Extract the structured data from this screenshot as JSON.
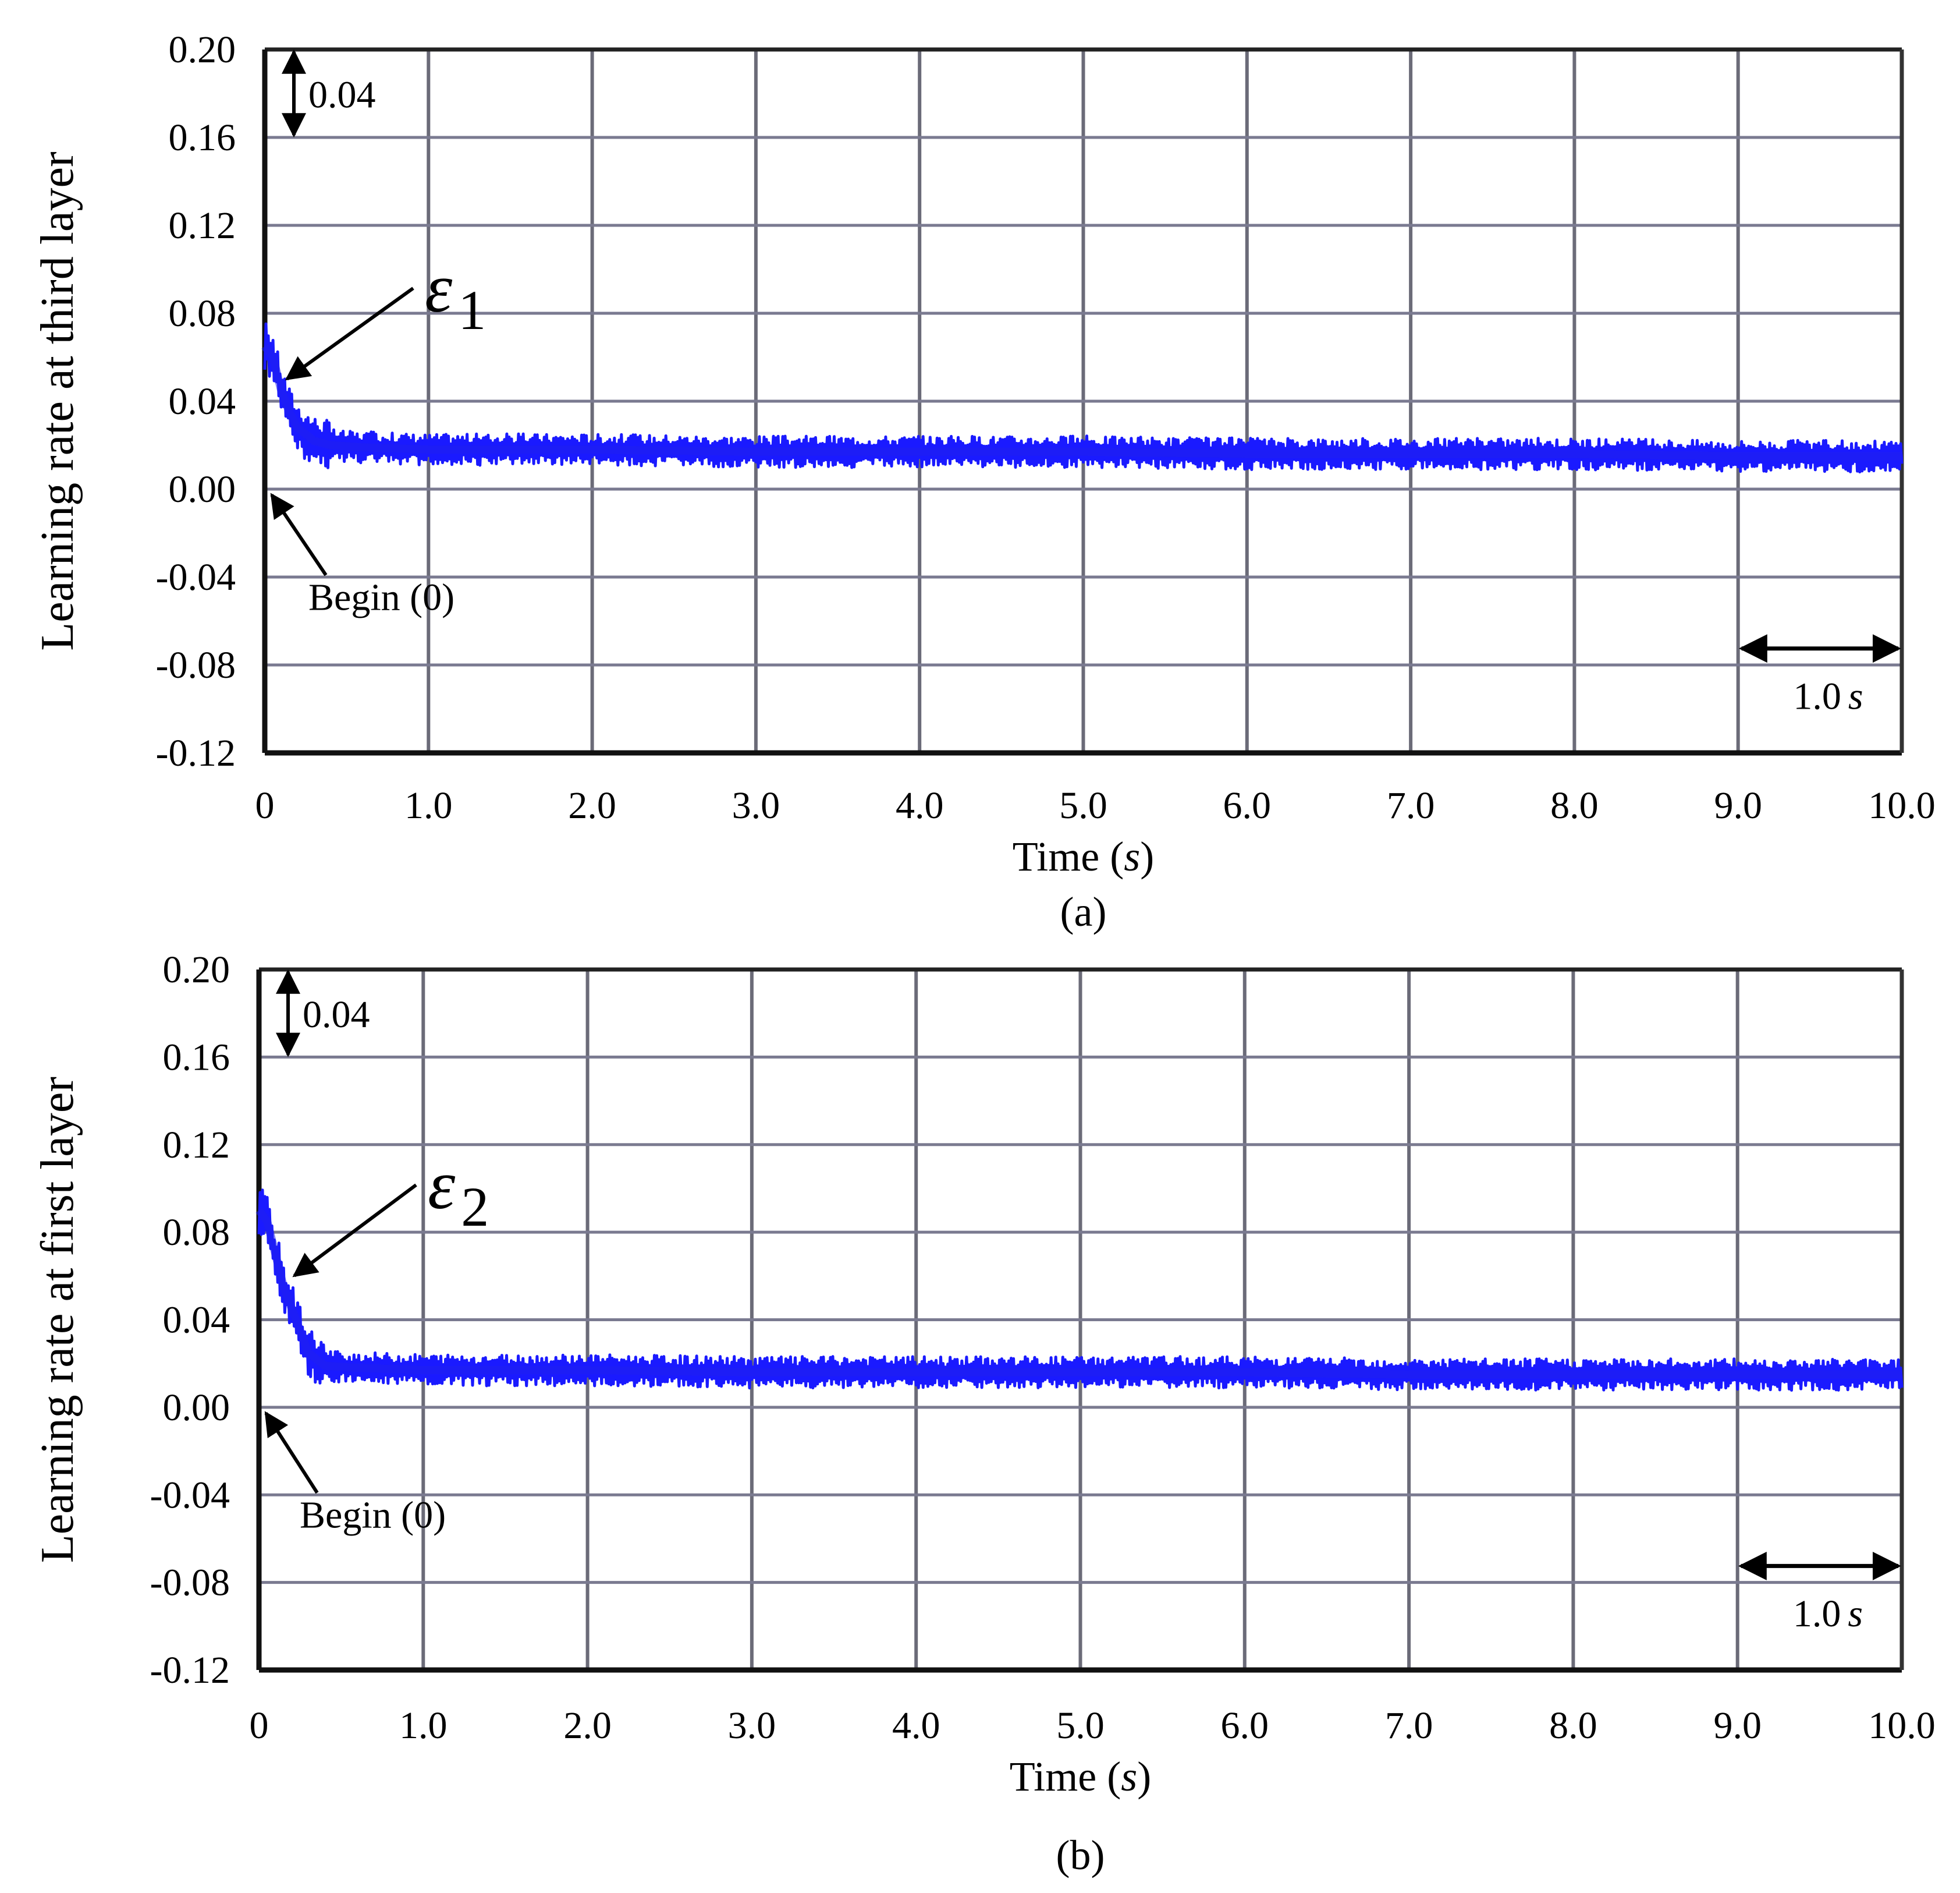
{
  "chart_data": [
    {
      "type": "line",
      "panel": "(a)",
      "caption": "(a)",
      "xlabel_main": "Time",
      "xlabel_unit": "s",
      "ylabel": "Learning rate at third layer",
      "xlim": [
        0,
        10
      ],
      "ylim": [
        -0.12,
        0.2
      ],
      "x_ticks": [
        "0",
        "1.0",
        "2.0",
        "3.0",
        "4.0",
        "5.0",
        "6.0",
        "7.0",
        "8.0",
        "9.0",
        "10.0"
      ],
      "y_ticks": [
        "0.20",
        "0.16",
        "0.12",
        "0.08",
        "0.04",
        "0.00",
        "-0.04",
        "-0.08",
        "-0.12"
      ],
      "grid": true,
      "series_color": "#1a1aff",
      "series": [
        {
          "name": "ε1",
          "x": [
            0,
            0.05,
            0.1,
            0.15,
            0.2,
            0.3,
            0.4,
            0.6,
            1.0,
            2.0,
            3.0,
            4.0,
            5.0,
            6.0,
            7.0,
            8.0,
            9.0,
            10.0
          ],
          "y": [
            0.065,
            0.06,
            0.045,
            0.035,
            0.028,
            0.022,
            0.02,
            0.019,
            0.018,
            0.018,
            0.017,
            0.017,
            0.017,
            0.016,
            0.016,
            0.016,
            0.015,
            0.015
          ],
          "noise_amplitude": 0.008
        }
      ],
      "annotations": {
        "scale_y_label": "0.04",
        "begin_label": "Begin (0)",
        "series_label": "ε",
        "series_label_sub": "1",
        "scale_x_value": "1.0",
        "scale_x_unit": "s"
      }
    },
    {
      "type": "line",
      "panel": "(b)",
      "caption": "(b)",
      "xlabel_main": "Time",
      "xlabel_unit": "s",
      "ylabel": "Learning rate at first layer",
      "xlim": [
        0,
        10
      ],
      "ylim": [
        -0.12,
        0.2
      ],
      "x_ticks": [
        "0",
        "1.0",
        "2.0",
        "3.0",
        "4.0",
        "5.0",
        "6.0",
        "7.0",
        "8.0",
        "9.0",
        "10.0"
      ],
      "y_ticks": [
        "0.20",
        "0.16",
        "0.12",
        "0.08",
        "0.04",
        "0.00",
        "-0.04",
        "-0.08",
        "-0.12"
      ],
      "grid": true,
      "series_color": "#1a1aff",
      "series": [
        {
          "name": "ε2",
          "x": [
            0,
            0.05,
            0.1,
            0.15,
            0.2,
            0.25,
            0.3,
            0.4,
            0.6,
            1.0,
            2.0,
            3.0,
            4.0,
            5.0,
            6.0,
            7.0,
            8.0,
            9.0,
            10.0
          ],
          "y": [
            0.09,
            0.085,
            0.07,
            0.055,
            0.045,
            0.035,
            0.025,
            0.019,
            0.018,
            0.017,
            0.017,
            0.016,
            0.016,
            0.016,
            0.016,
            0.015,
            0.015,
            0.015,
            0.015
          ],
          "noise_amplitude": 0.008
        }
      ],
      "annotations": {
        "scale_y_label": "0.04",
        "begin_label": "Begin (0)",
        "series_label": "ε",
        "series_label_sub": "2",
        "scale_x_value": "1.0",
        "scale_x_unit": "s"
      }
    }
  ]
}
